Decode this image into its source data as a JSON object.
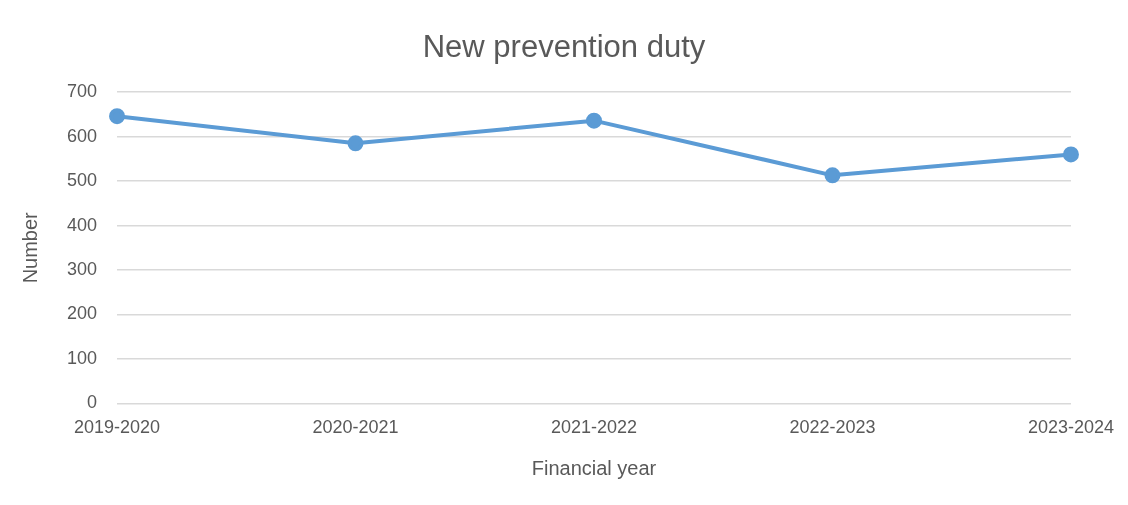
{
  "chart_data": {
    "type": "line",
    "title": "New prevention duty",
    "xlabel": "Financial year",
    "ylabel": "Number",
    "categories": [
      "2019-2020",
      "2020-2021",
      "2021-2022",
      "2022-2023",
      "2023-2024"
    ],
    "series": [
      {
        "color": "#5b9bd5",
        "values": [
          646,
          585,
          636,
          513,
          560
        ]
      }
    ],
    "ylim": [
      0,
      700
    ],
    "yticks": [
      0,
      100,
      200,
      300,
      400,
      500,
      600,
      700
    ],
    "grid": "y",
    "marker": "circle",
    "line_style": "solid"
  }
}
